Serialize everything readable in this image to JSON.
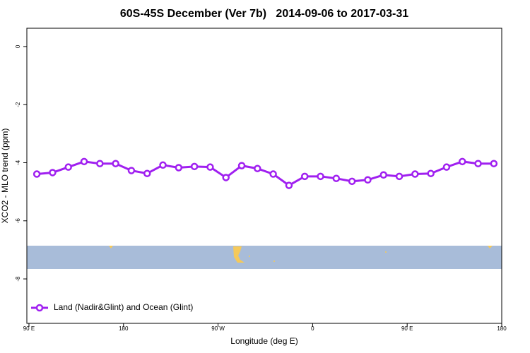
{
  "chart_data": {
    "type": "line",
    "title": "60S-45S December (Ver 7b)   2014-09-06 to 2017-03-31",
    "x_label": "Longitude (deg E)",
    "y_label": "XCO2 - MLO trend (ppm)",
    "x": [
      97.5,
      112.5,
      127.5,
      142.5,
      157.5,
      172.5,
      187.5,
      202.5,
      217.5,
      232.5,
      247.5,
      262.5,
      277.5,
      292.5,
      307.5,
      322.5,
      337.5,
      352.5,
      367.5,
      382.5,
      397.5,
      412.5,
      427.5,
      442.5,
      457.5,
      472.5,
      487.5,
      502.5,
      517.5,
      532.5
    ],
    "series": [
      {
        "name": "Land (Nadir&Glint) and Ocean (Glint)",
        "color": "#a020f0",
        "values": [
          -4.39,
          -4.34,
          -4.15,
          -3.96,
          -4.03,
          -4.03,
          -4.27,
          -4.37,
          -4.08,
          -4.17,
          -4.13,
          -4.15,
          -4.51,
          -4.1,
          -4.2,
          -4.39,
          -4.78,
          -4.47,
          -4.47,
          -4.54,
          -4.64,
          -4.59,
          -4.42,
          -4.47,
          -4.39,
          -4.37,
          -4.15,
          -3.96,
          -4.03,
          -4.03
        ]
      }
    ],
    "xlim": [
      88,
      540
    ],
    "ylim": [
      -9.53,
      0.63
    ],
    "xticks": [
      {
        "value": 90,
        "label": "90 E"
      },
      180,
      {
        "value": 270,
        "label": "90 W"
      },
      {
        "value": 360,
        "label": "0"
      },
      {
        "value": 450,
        "label": "90 E"
      },
      {
        "value": 540,
        "label": "180"
      }
    ],
    "yticks": [
      0,
      -2,
      -4,
      -6,
      -8
    ],
    "legend": "bottom-left"
  }
}
